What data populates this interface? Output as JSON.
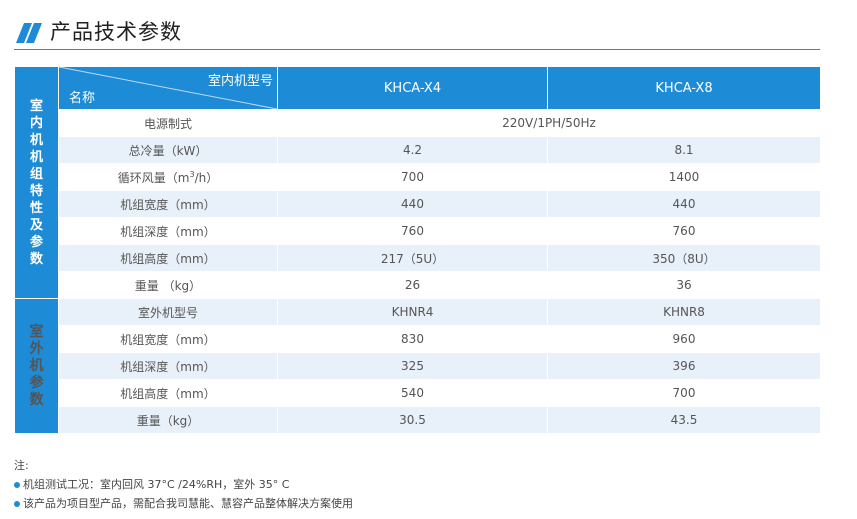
{
  "title": "产品技术参数",
  "header": {
    "model_label": "室内机型号",
    "name_label": "名称",
    "col1": "KHCA-X4",
    "col2": "KHCA-X8"
  },
  "groups": {
    "indoor": "室内机机组特性及参数",
    "outdoor": "室外机参数"
  },
  "power": {
    "label": "电源制式",
    "value": "220V/1PH/50Hz"
  },
  "indoor_rows": [
    {
      "label": "总冷量（kW）",
      "v1": "4.2",
      "v2": "8.1"
    },
    {
      "label_pre": "循环风量（m",
      "label_sup": "3",
      "label_post": "/h）",
      "v1": "700",
      "v2": "1400"
    },
    {
      "label": "机组宽度（mm）",
      "v1": "440",
      "v2": "440"
    },
    {
      "label": "机组深度（mm）",
      "v1": "760",
      "v2": "760"
    },
    {
      "label": "机组高度（mm）",
      "v1": "217（5U）",
      "v2": "350（8U）"
    },
    {
      "label": "重量 （kg）",
      "v1": "26",
      "v2": "36"
    }
  ],
  "outdoor_rows": [
    {
      "label": "室外机型号",
      "v1": "KHNR4",
      "v2": "KHNR8"
    },
    {
      "label": "机组宽度（mm）",
      "v1": "830",
      "v2": "960"
    },
    {
      "label": "机组深度（mm）",
      "v1": "325",
      "v2": "396"
    },
    {
      "label": "机组高度（mm）",
      "v1": "540",
      "v2": "700"
    },
    {
      "label": "重量（kg）",
      "v1": "30.5",
      "v2": "43.5"
    }
  ],
  "notes": {
    "heading": "注:",
    "items": [
      "机组测试工况：室内回风 37°C /24%RH，室外 35° C",
      "该产品为项目型产品，需配合我司慧能、慧容产品整体解决方案使用"
    ]
  },
  "colors": {
    "accent": "#1e8bd6",
    "stripe": "#e8f1fa"
  }
}
